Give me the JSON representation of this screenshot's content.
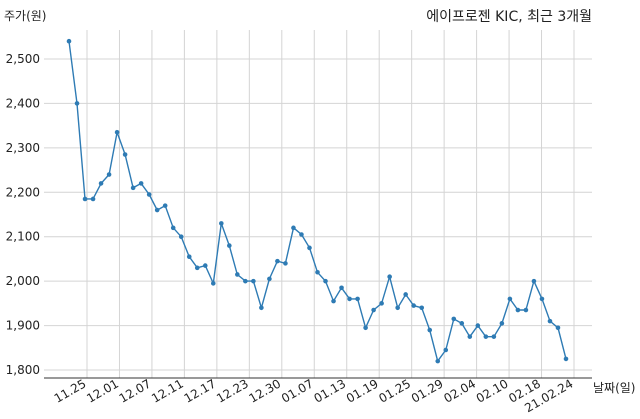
{
  "chart_data": {
    "type": "line",
    "title": "에이프로젠 KIC, 최근 3개월",
    "ylabel": "주가(원)",
    "xlabel": "날짜(일)",
    "ylim": [
      1780,
      2560
    ],
    "yticks": [
      1800,
      1900,
      2000,
      2100,
      2200,
      2300,
      2400,
      2500
    ],
    "ytick_labels": [
      "1,800",
      "1,900",
      "2,000",
      "2,100",
      "2,200",
      "2,300",
      "2,400",
      "2,500"
    ],
    "xtick_labels": [
      "11.25",
      "12.01",
      "12.07",
      "12.11",
      "12.17",
      "12.23",
      "12.30",
      "01.07",
      "01.13",
      "01.19",
      "01.25",
      "01.29",
      "02.04",
      "02.10",
      "02.18",
      "21.02.24"
    ],
    "grid": true,
    "color": "#2e7bb4",
    "series": [
      {
        "values": [
          2540,
          2400,
          2185,
          2185,
          2220,
          2240,
          2335,
          2285,
          2210,
          2220,
          2195,
          2160,
          2170,
          2120,
          2100,
          2055,
          2030,
          2035,
          1995,
          2130,
          2080,
          2015,
          2000,
          2000,
          1940,
          2005,
          2045,
          2040,
          2120,
          2105,
          2075,
          2020,
          2000,
          1955,
          1985,
          1960,
          1960,
          1895,
          1935,
          1950,
          2010,
          1940,
          1970,
          1945,
          1940,
          1890,
          1820,
          1845,
          1915,
          1905,
          1875,
          1900,
          1875,
          1875,
          1905,
          1960,
          1935,
          1935,
          2000,
          1960,
          1910,
          1895,
          1825
        ]
      }
    ]
  }
}
